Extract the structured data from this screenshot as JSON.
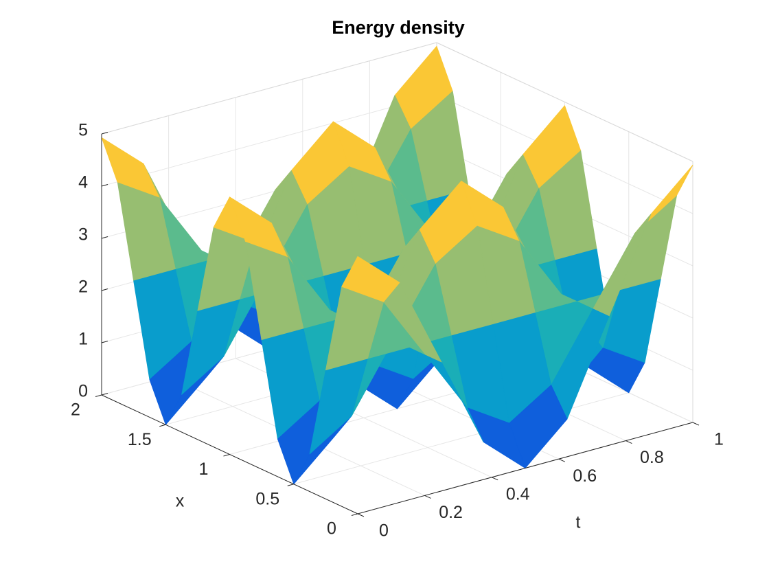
{
  "chart_data": {
    "type": "surface",
    "title": "Energy density",
    "xlabel": "x",
    "tlabel": "t",
    "x": [
      0,
      0.125,
      0.25,
      0.375,
      0.5,
      0.625,
      0.75,
      0.875,
      1,
      1.125,
      1.25,
      1.375,
      1.5,
      1.625,
      1.75,
      1.875,
      2
    ],
    "t": [
      0,
      0.125,
      0.25,
      0.375,
      0.5,
      0.625,
      0.75,
      0.875,
      1
    ],
    "z": [
      [
        4.93,
        4.21,
        2.47,
        0.72,
        0,
        0.72,
        2.47,
        4.21,
        4.93
      ],
      [
        4.21,
        3.7,
        2.47,
        1.23,
        0.72,
        1.23,
        2.47,
        3.7,
        4.21
      ],
      [
        2.47,
        2.47,
        2.47,
        2.47,
        2.47,
        2.47,
        2.47,
        2.47,
        2.47
      ],
      [
        0.72,
        1.23,
        2.47,
        3.7,
        4.21,
        3.7,
        2.47,
        1.23,
        0.72
      ],
      [
        0,
        0.72,
        2.47,
        4.21,
        4.93,
        4.21,
        2.47,
        0.72,
        0
      ],
      [
        0.72,
        1.23,
        2.47,
        3.7,
        4.21,
        3.7,
        2.47,
        1.23,
        0.72
      ],
      [
        2.47,
        2.47,
        2.47,
        2.47,
        2.47,
        2.47,
        2.47,
        2.47,
        2.47
      ],
      [
        4.21,
        3.7,
        2.47,
        1.23,
        0.72,
        1.23,
        2.47,
        3.7,
        4.21
      ],
      [
        4.93,
        4.21,
        2.47,
        0.72,
        0,
        0.72,
        2.47,
        4.21,
        4.93
      ],
      [
        4.21,
        3.7,
        2.47,
        1.23,
        0.72,
        1.23,
        2.47,
        3.7,
        4.21
      ],
      [
        2.47,
        2.47,
        2.47,
        2.47,
        2.47,
        2.47,
        2.47,
        2.47,
        2.47
      ],
      [
        0.72,
        1.23,
        2.47,
        3.7,
        4.21,
        3.7,
        2.47,
        1.23,
        0.72
      ],
      [
        0,
        0.72,
        2.47,
        4.21,
        4.93,
        4.21,
        2.47,
        0.72,
        0
      ],
      [
        0.72,
        1.23,
        2.47,
        3.7,
        4.21,
        3.7,
        2.47,
        1.23,
        0.72
      ],
      [
        2.47,
        2.47,
        2.47,
        2.47,
        2.47,
        2.47,
        2.47,
        2.47,
        2.47
      ],
      [
        4.21,
        3.7,
        2.47,
        1.23,
        0.72,
        1.23,
        2.47,
        3.7,
        4.21
      ],
      [
        4.93,
        4.21,
        2.47,
        0.72,
        0,
        0.72,
        2.47,
        4.21,
        4.93
      ]
    ],
    "xlim": [
      0,
      2
    ],
    "tlim": [
      0,
      1
    ],
    "zlim": [
      0,
      5
    ],
    "xticks": [
      0,
      0.5,
      1,
      1.5,
      2
    ],
    "tticks": [
      0,
      0.2,
      0.4,
      0.6,
      0.8,
      1
    ],
    "zticks": [
      0,
      1,
      2,
      3,
      4,
      5
    ],
    "grid": true,
    "colormap": [
      "#352a87",
      "#0f5cdd",
      "#1481d6",
      "#06a4ca",
      "#2eb7a4",
      "#87bf77",
      "#d1bb59",
      "#fec832",
      "#f9fb0e"
    ]
  }
}
